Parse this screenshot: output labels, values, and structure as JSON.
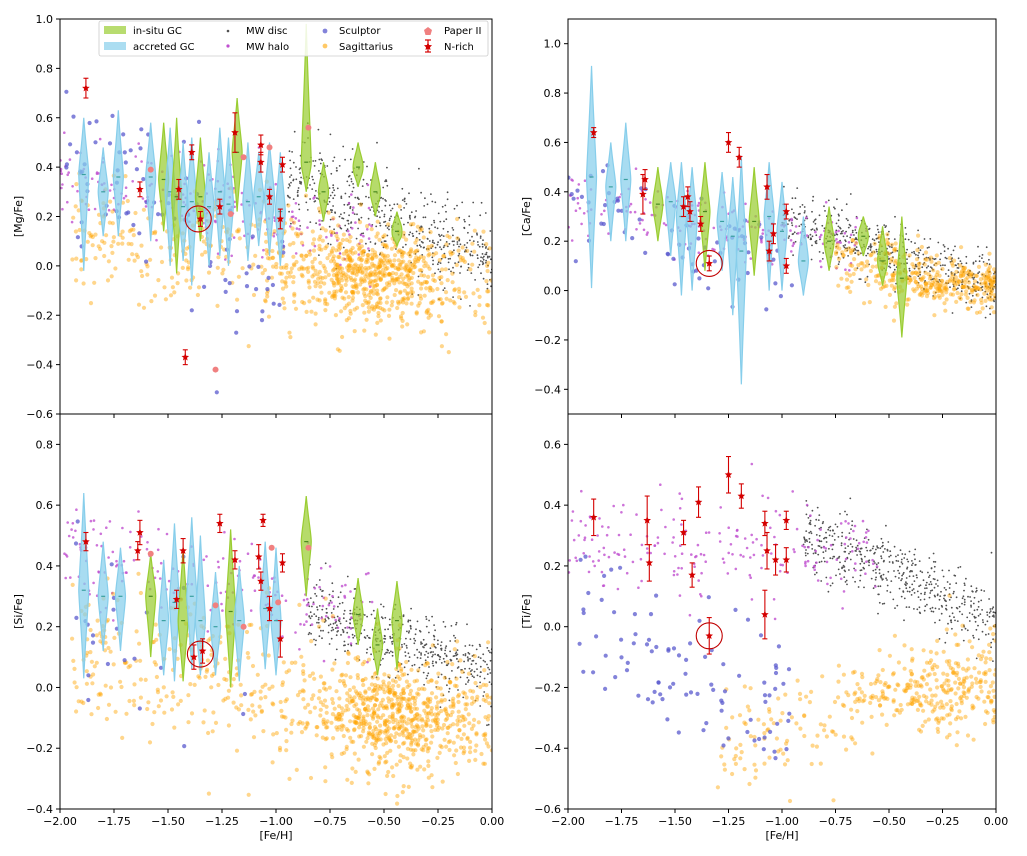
{
  "colors": {
    "insitu": "#9acd32",
    "accreted": "#87ceeb",
    "mw_disc": "#505050",
    "mw_halo": "#c050d0",
    "sculptor": "#5a5acd",
    "sagittarius": "#ffa500",
    "paper2": "#f08080",
    "nrich": "#d40000"
  },
  "legend": {
    "insitu": "in-situ GC",
    "accreted": "accreted GC",
    "mw_disc": "MW disc",
    "mw_halo": "MW halo",
    "sculptor": "Sculptor",
    "sagittarius": "Sagittarius",
    "paper2": "Paper II",
    "nrich": "N-rich"
  },
  "chart_data": [
    {
      "id": "mg",
      "type": "scatter",
      "ylabel": "[Mg/Fe]",
      "xlabel": "",
      "xlim": [
        -2.0,
        0.0
      ],
      "ylim": [
        -0.6,
        1.0
      ],
      "xticks": [],
      "yticks": [
        "1.0",
        "0.8",
        "0.6",
        "0.4",
        "0.2",
        "0.0",
        "−0.2",
        "−0.4",
        "−0.6"
      ],
      "ytick_values": [
        1.0,
        0.8,
        0.6,
        0.4,
        0.2,
        0.0,
        -0.2,
        -0.4,
        -0.6
      ],
      "gc": [
        {
          "x": -1.89,
          "y": 0.37,
          "lo": -0.02,
          "hi": 0.6,
          "t": "a"
        },
        {
          "x": -1.8,
          "y": 0.3,
          "lo": 0.12,
          "hi": 0.48,
          "t": "a"
        },
        {
          "x": -1.73,
          "y": 0.36,
          "lo": 0.12,
          "hi": 0.63,
          "t": "a"
        },
        {
          "x": -1.58,
          "y": 0.36,
          "lo": 0.1,
          "hi": 0.58,
          "t": "a"
        },
        {
          "x": -1.52,
          "y": 0.35,
          "lo": 0.14,
          "hi": 0.58,
          "t": "i"
        },
        {
          "x": -1.49,
          "y": 0.3,
          "lo": 0.0,
          "hi": 0.56,
          "t": "a"
        },
        {
          "x": -1.46,
          "y": 0.28,
          "lo": -0.03,
          "hi": 0.6,
          "t": "i"
        },
        {
          "x": -1.43,
          "y": 0.24,
          "lo": 0.02,
          "hi": 0.5,
          "t": "a"
        },
        {
          "x": -1.39,
          "y": 0.26,
          "lo": -0.08,
          "hi": 0.52,
          "t": "a"
        },
        {
          "x": -1.35,
          "y": 0.28,
          "lo": 0.1,
          "hi": 0.52,
          "t": "i"
        },
        {
          "x": -1.31,
          "y": 0.24,
          "lo": 0.0,
          "hi": 0.46,
          "t": "a"
        },
        {
          "x": -1.26,
          "y": 0.3,
          "lo": 0.04,
          "hi": 0.56,
          "t": "a"
        },
        {
          "x": -1.22,
          "y": 0.25,
          "lo": 0.0,
          "hi": 0.52,
          "t": "a"
        },
        {
          "x": -1.18,
          "y": 0.46,
          "lo": 0.22,
          "hi": 0.68,
          "t": "i"
        },
        {
          "x": -1.13,
          "y": 0.26,
          "lo": 0.02,
          "hi": 0.5,
          "t": "a"
        },
        {
          "x": -1.08,
          "y": 0.28,
          "lo": 0.08,
          "hi": 0.46,
          "t": "a"
        },
        {
          "x": -1.03,
          "y": 0.28,
          "lo": 0.04,
          "hi": 0.5,
          "t": "a"
        },
        {
          "x": -0.98,
          "y": 0.22,
          "lo": 0.0,
          "hi": 0.46,
          "t": "a"
        },
        {
          "x": -0.86,
          "y": 0.42,
          "lo": 0.3,
          "hi": 0.98,
          "t": "i"
        },
        {
          "x": -0.78,
          "y": 0.3,
          "lo": 0.18,
          "hi": 0.42,
          "t": "i"
        },
        {
          "x": -0.62,
          "y": 0.4,
          "lo": 0.32,
          "hi": 0.5,
          "t": "i"
        },
        {
          "x": -0.54,
          "y": 0.3,
          "lo": 0.2,
          "hi": 0.42,
          "t": "i"
        },
        {
          "x": -0.44,
          "y": 0.14,
          "lo": 0.08,
          "hi": 0.22,
          "t": "i"
        }
      ],
      "nrich": [
        {
          "x": -1.88,
          "y": 0.72,
          "e": 0.04
        },
        {
          "x": -1.63,
          "y": 0.31,
          "e": 0.03
        },
        {
          "x": -1.45,
          "y": 0.31,
          "e": 0.04
        },
        {
          "x": -1.39,
          "y": 0.46,
          "e": 0.03
        },
        {
          "x": -1.35,
          "y": 0.19,
          "e": 0.03
        },
        {
          "x": -1.42,
          "y": -0.37,
          "e": 0.03
        },
        {
          "x": -1.26,
          "y": 0.24,
          "e": 0.03
        },
        {
          "x": -1.19,
          "y": 0.54,
          "e": 0.08
        },
        {
          "x": -1.07,
          "y": 0.49,
          "e": 0.04
        },
        {
          "x": -1.07,
          "y": 0.42,
          "e": 0.04
        },
        {
          "x": -1.03,
          "y": 0.28,
          "e": 0.03
        },
        {
          "x": -0.98,
          "y": 0.19,
          "e": 0.04
        },
        {
          "x": -0.97,
          "y": 0.41,
          "e": 0.03
        }
      ],
      "paper2": [
        {
          "x": -1.28,
          "y": -0.42
        },
        {
          "x": -1.21,
          "y": 0.21
        },
        {
          "x": -1.15,
          "y": 0.44
        },
        {
          "x": -1.03,
          "y": 0.48
        },
        {
          "x": -0.85,
          "y": 0.56
        },
        {
          "x": -1.58,
          "y": 0.39
        }
      ],
      "circle": {
        "x": -1.36,
        "y": 0.19
      },
      "disc_cfg": {
        "y0": 0.35,
        "y1": 0.03,
        "sp": 0.09,
        "x0": -0.95,
        "n": 520
      },
      "halo_cfg": {
        "y0": 0.37,
        "y1": 0.12,
        "sp": 0.09,
        "x0": -2.0,
        "x1": -0.55,
        "n": 200
      },
      "scl_cfg": {
        "y0": 0.5,
        "y1": -0.1,
        "sp": 0.18,
        "x0": -2.0,
        "x1": -0.95,
        "n": 85
      },
      "sgr_cfg": {
        "y0": 0.12,
        "y1": -0.08,
        "sp": 0.12,
        "x0": -1.95,
        "x1": 0.0,
        "n": 950,
        "cx": -0.55,
        "cy": -0.04
      }
    },
    {
      "id": "ca",
      "type": "scatter",
      "ylabel": "[Ca/Fe]",
      "xlabel": "",
      "xlim": [
        -2.0,
        0.0
      ],
      "ylim": [
        -0.5,
        1.1
      ],
      "xticks": [],
      "yticks": [
        "1.0",
        "0.8",
        "0.6",
        "0.4",
        "0.2",
        "0.0",
        "−0.2",
        "−0.4"
      ],
      "ytick_values": [
        1.0,
        0.8,
        0.6,
        0.4,
        0.2,
        0.0,
        -0.2,
        -0.4
      ],
      "gc": [
        {
          "x": -1.89,
          "y": 0.46,
          "lo": 0.01,
          "hi": 0.91,
          "t": "a"
        },
        {
          "x": -1.8,
          "y": 0.42,
          "lo": 0.2,
          "hi": 0.6,
          "t": "a"
        },
        {
          "x": -1.73,
          "y": 0.45,
          "lo": 0.2,
          "hi": 0.68,
          "t": "a"
        },
        {
          "x": -1.58,
          "y": 0.35,
          "lo": 0.2,
          "hi": 0.5,
          "t": "i"
        },
        {
          "x": -1.52,
          "y": 0.36,
          "lo": 0.14,
          "hi": 0.52,
          "t": "a"
        },
        {
          "x": -1.47,
          "y": 0.3,
          "lo": -0.02,
          "hi": 0.52,
          "t": "a"
        },
        {
          "x": -1.42,
          "y": 0.28,
          "lo": 0.0,
          "hi": 0.5,
          "t": "a"
        },
        {
          "x": -1.36,
          "y": 0.32,
          "lo": 0.08,
          "hi": 0.52,
          "t": "i"
        },
        {
          "x": -1.28,
          "y": 0.28,
          "lo": 0.08,
          "hi": 0.48,
          "t": "a"
        },
        {
          "x": -1.23,
          "y": 0.22,
          "lo": -0.1,
          "hi": 0.46,
          "t": "a"
        },
        {
          "x": -1.19,
          "y": 0.16,
          "lo": -0.38,
          "hi": 0.54,
          "t": "a"
        },
        {
          "x": -1.13,
          "y": 0.28,
          "lo": 0.06,
          "hi": 0.5,
          "t": "i"
        },
        {
          "x": -1.06,
          "y": 0.3,
          "lo": 0.0,
          "hi": 0.52,
          "t": "a"
        },
        {
          "x": -1.0,
          "y": 0.24,
          "lo": 0.0,
          "hi": 0.44,
          "t": "a"
        },
        {
          "x": -0.9,
          "y": 0.12,
          "lo": -0.02,
          "hi": 0.3,
          "t": "a"
        },
        {
          "x": -0.78,
          "y": 0.2,
          "lo": 0.08,
          "hi": 0.34,
          "t": "i"
        },
        {
          "x": -0.62,
          "y": 0.22,
          "lo": 0.14,
          "hi": 0.3,
          "t": "i"
        },
        {
          "x": -0.53,
          "y": 0.12,
          "lo": 0.02,
          "hi": 0.26,
          "t": "i"
        },
        {
          "x": -0.44,
          "y": 0.05,
          "lo": -0.19,
          "hi": 0.3,
          "t": "i"
        }
      ],
      "nrich": [
        {
          "x": -1.88,
          "y": 0.64,
          "e": 0.02
        },
        {
          "x": -1.64,
          "y": 0.45,
          "e": 0.04
        },
        {
          "x": -1.65,
          "y": 0.39,
          "e": 0.08
        },
        {
          "x": -1.46,
          "y": 0.34,
          "e": 0.04
        },
        {
          "x": -1.44,
          "y": 0.38,
          "e": 0.04
        },
        {
          "x": -1.43,
          "y": 0.32,
          "e": 0.04
        },
        {
          "x": -1.38,
          "y": 0.27,
          "e": 0.03
        },
        {
          "x": -1.34,
          "y": 0.11,
          "e": 0.03
        },
        {
          "x": -1.25,
          "y": 0.6,
          "e": 0.04
        },
        {
          "x": -1.2,
          "y": 0.54,
          "e": 0.04
        },
        {
          "x": -1.07,
          "y": 0.42,
          "e": 0.05
        },
        {
          "x": -1.06,
          "y": 0.16,
          "e": 0.04
        },
        {
          "x": -1.04,
          "y": 0.23,
          "e": 0.04
        },
        {
          "x": -0.98,
          "y": 0.32,
          "e": 0.03
        },
        {
          "x": -0.98,
          "y": 0.1,
          "e": 0.03
        }
      ],
      "paper2": [],
      "circle": {
        "x": -1.34,
        "y": 0.11
      },
      "disc_cfg": {
        "y0": 0.3,
        "y1": 0.02,
        "sp": 0.06,
        "x0": -1.0,
        "n": 520
      },
      "halo_cfg": {
        "y0": 0.33,
        "y1": 0.2,
        "sp": 0.06,
        "x0": -2.0,
        "x1": -0.6,
        "n": 180
      },
      "scl_cfg": {
        "y0": 0.35,
        "y1": 0.0,
        "sp": 0.12,
        "x0": -2.0,
        "x1": -0.95,
        "n": 70
      },
      "sgr_cfg": {
        "y0": 0.15,
        "y1": 0.0,
        "sp": 0.06,
        "x0": -0.75,
        "x1": 0.0,
        "n": 380,
        "cx": -0.25,
        "cy": 0.02
      }
    },
    {
      "id": "si",
      "type": "scatter",
      "ylabel": "[Si/Fe]",
      "xlabel": "[Fe/H]",
      "xlim": [
        -2.0,
        0.0
      ],
      "ylim": [
        -0.4,
        0.9
      ],
      "xticks": [
        "−2.00",
        "−1.75",
        "−1.50",
        "−1.25",
        "−1.00",
        "−0.75",
        "−0.50",
        "−0.25",
        "0.00"
      ],
      "xtick_values": [
        -2.0,
        -1.75,
        -1.5,
        -1.25,
        -1.0,
        -0.75,
        -0.5,
        -0.25,
        0.0
      ],
      "yticks": [
        "0.8",
        "0.6",
        "0.4",
        "0.2",
        "0.0",
        "−0.2",
        "−0.4"
      ],
      "ytick_values": [
        0.8,
        0.6,
        0.4,
        0.2,
        0.0,
        -0.2,
        -0.4
      ],
      "gc": [
        {
          "x": -1.89,
          "y": 0.32,
          "lo": 0.03,
          "hi": 0.64,
          "t": "a"
        },
        {
          "x": -1.8,
          "y": 0.3,
          "lo": 0.12,
          "hi": 0.48,
          "t": "a"
        },
        {
          "x": -1.72,
          "y": 0.3,
          "lo": 0.12,
          "hi": 0.46,
          "t": "a"
        },
        {
          "x": -1.58,
          "y": 0.3,
          "lo": 0.1,
          "hi": 0.44,
          "t": "i"
        },
        {
          "x": -1.52,
          "y": 0.22,
          "lo": 0.04,
          "hi": 0.42,
          "t": "a"
        },
        {
          "x": -1.47,
          "y": 0.28,
          "lo": 0.02,
          "hi": 0.54,
          "t": "a"
        },
        {
          "x": -1.43,
          "y": 0.22,
          "lo": 0.02,
          "hi": 0.46,
          "t": "i"
        },
        {
          "x": -1.39,
          "y": 0.3,
          "lo": 0.06,
          "hi": 0.56,
          "t": "a"
        },
        {
          "x": -1.35,
          "y": 0.22,
          "lo": 0.04,
          "hi": 0.5,
          "t": "a"
        },
        {
          "x": -1.28,
          "y": 0.2,
          "lo": 0.04,
          "hi": 0.38,
          "t": "a"
        },
        {
          "x": -1.21,
          "y": 0.25,
          "lo": 0.0,
          "hi": 0.52,
          "t": "i"
        },
        {
          "x": -1.17,
          "y": 0.22,
          "lo": 0.02,
          "hi": 0.4,
          "t": "a"
        },
        {
          "x": -1.05,
          "y": 0.26,
          "lo": 0.06,
          "hi": 0.48,
          "t": "a"
        },
        {
          "x": -1.0,
          "y": 0.22,
          "lo": 0.04,
          "hi": 0.46,
          "t": "a"
        },
        {
          "x": -0.86,
          "y": 0.48,
          "lo": 0.3,
          "hi": 0.63,
          "t": "i"
        },
        {
          "x": -0.62,
          "y": 0.24,
          "lo": 0.14,
          "hi": 0.36,
          "t": "i"
        },
        {
          "x": -0.53,
          "y": 0.14,
          "lo": 0.04,
          "hi": 0.26,
          "t": "i"
        },
        {
          "x": -0.44,
          "y": 0.22,
          "lo": 0.06,
          "hi": 0.35,
          "t": "i"
        }
      ],
      "nrich": [
        {
          "x": -1.88,
          "y": 0.48,
          "e": 0.03
        },
        {
          "x": -1.64,
          "y": 0.45,
          "e": 0.03
        },
        {
          "x": -1.63,
          "y": 0.51,
          "e": 0.04
        },
        {
          "x": -1.46,
          "y": 0.29,
          "e": 0.03
        },
        {
          "x": -1.43,
          "y": 0.45,
          "e": 0.04
        },
        {
          "x": -1.38,
          "y": 0.1,
          "e": 0.04
        },
        {
          "x": -1.34,
          "y": 0.12,
          "e": 0.04
        },
        {
          "x": -1.26,
          "y": 0.54,
          "e": 0.03
        },
        {
          "x": -1.19,
          "y": 0.42,
          "e": 0.03
        },
        {
          "x": -1.08,
          "y": 0.43,
          "e": 0.04
        },
        {
          "x": -1.07,
          "y": 0.35,
          "e": 0.03
        },
        {
          "x": -1.06,
          "y": 0.55,
          "e": 0.02
        },
        {
          "x": -1.03,
          "y": 0.26,
          "e": 0.04
        },
        {
          "x": -0.98,
          "y": 0.16,
          "e": 0.06
        },
        {
          "x": -0.97,
          "y": 0.41,
          "e": 0.03
        }
      ],
      "paper2": [
        {
          "x": -1.58,
          "y": 0.44
        },
        {
          "x": -1.28,
          "y": 0.27
        },
        {
          "x": -1.15,
          "y": 0.2
        },
        {
          "x": -1.02,
          "y": 0.46
        },
        {
          "x": -0.85,
          "y": 0.46
        },
        {
          "x": -0.99,
          "y": 0.28
        }
      ],
      "circle": {
        "x": -1.35,
        "y": 0.11
      },
      "disc_cfg": {
        "y0": 0.25,
        "y1": 0.04,
        "sp": 0.06,
        "x0": -0.85,
        "n": 480
      },
      "halo_cfg": {
        "y0": 0.47,
        "y1": 0.25,
        "sp": 0.07,
        "x0": -2.0,
        "x1": -0.55,
        "n": 180
      },
      "scl_cfg": {
        "y0": 0.3,
        "y1": -0.1,
        "sp": 0.15,
        "x0": -1.95,
        "x1": -1.1,
        "n": 25
      },
      "sgr_cfg": {
        "y0": 0.1,
        "y1": -0.12,
        "sp": 0.12,
        "x0": -1.95,
        "x1": 0.0,
        "n": 1000,
        "cx": -0.45,
        "cy": -0.1
      }
    },
    {
      "id": "ti",
      "type": "scatter",
      "ylabel": "[Ti/Fe]",
      "xlabel": "[Fe/H]",
      "xlim": [
        -2.0,
        0.0
      ],
      "ylim": [
        -0.6,
        0.7
      ],
      "xticks": [
        "−2.00",
        "−1.75",
        "−1.50",
        "−1.25",
        "−1.00",
        "−0.75",
        "−0.50",
        "−0.25",
        "0.00"
      ],
      "xtick_values": [
        -2.0,
        -1.75,
        -1.5,
        -1.25,
        -1.0,
        -0.75,
        -0.5,
        -0.25,
        0.0
      ],
      "yticks": [
        "0.6",
        "0.4",
        "0.2",
        "0.0",
        "−0.2",
        "−0.4",
        "−0.6"
      ],
      "ytick_values": [
        0.6,
        0.4,
        0.2,
        0.0,
        -0.2,
        -0.4,
        -0.6
      ],
      "gc": [],
      "nrich": [
        {
          "x": -1.88,
          "y": 0.36,
          "e": 0.06
        },
        {
          "x": -1.63,
          "y": 0.35,
          "e": 0.08
        },
        {
          "x": -1.62,
          "y": 0.21,
          "e": 0.06
        },
        {
          "x": -1.46,
          "y": 0.31,
          "e": 0.04
        },
        {
          "x": -1.42,
          "y": 0.17,
          "e": 0.04
        },
        {
          "x": -1.39,
          "y": 0.41,
          "e": 0.05
        },
        {
          "x": -1.34,
          "y": -0.03,
          "e": 0.06
        },
        {
          "x": -1.25,
          "y": 0.5,
          "e": 0.06
        },
        {
          "x": -1.19,
          "y": 0.43,
          "e": 0.04
        },
        {
          "x": -1.08,
          "y": 0.34,
          "e": 0.04
        },
        {
          "x": -1.07,
          "y": 0.25,
          "e": 0.06
        },
        {
          "x": -1.08,
          "y": 0.04,
          "e": 0.08
        },
        {
          "x": -1.03,
          "y": 0.22,
          "e": 0.05
        },
        {
          "x": -0.98,
          "y": 0.35,
          "e": 0.03
        },
        {
          "x": -0.98,
          "y": 0.22,
          "e": 0.04
        }
      ],
      "paper2": [],
      "circle": {
        "x": -1.34,
        "y": -0.03
      },
      "disc_cfg": {
        "y0": 0.3,
        "y1": 0.02,
        "sp": 0.06,
        "x0": -0.9,
        "n": 520
      },
      "halo_cfg": {
        "y0": 0.3,
        "y1": 0.22,
        "sp": 0.08,
        "x0": -2.0,
        "x1": -0.55,
        "n": 200
      },
      "scl_cfg": {
        "y0": 0.0,
        "y1": -0.3,
        "sp": 0.13,
        "x0": -1.95,
        "x1": -0.95,
        "n": 95
      },
      "sgr_cfg": {
        "y0": -0.42,
        "y1": -0.08,
        "sp": 0.09,
        "x0": -1.3,
        "x1": 0.0,
        "n": 400,
        "cx": -0.3,
        "cy": -0.22
      }
    }
  ]
}
